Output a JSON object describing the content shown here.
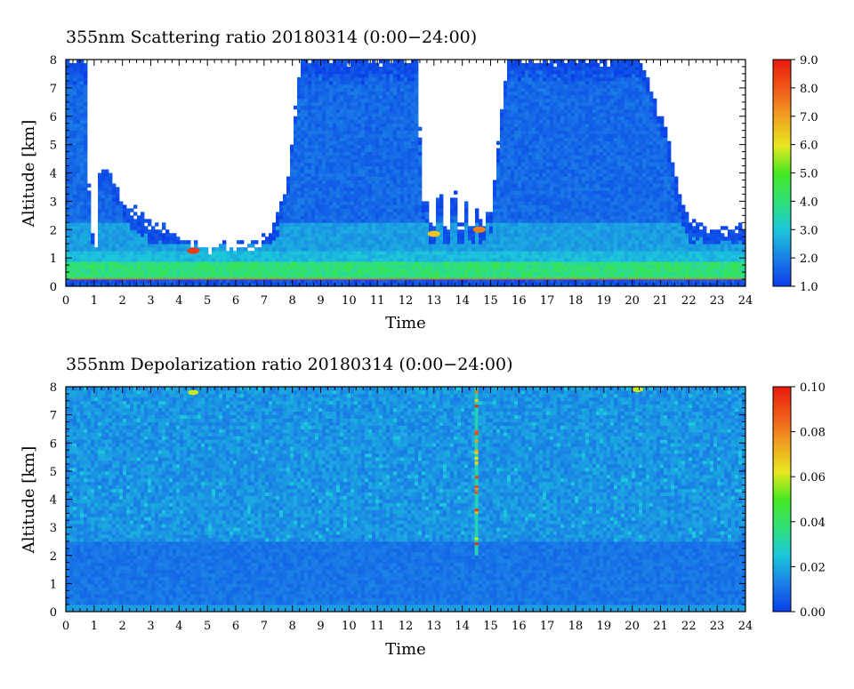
{
  "chart_data": [
    {
      "type": "heatmap",
      "title": "355nm Scattering ratio  20180314 (0:00−24:00)",
      "xlabel": "Time",
      "ylabel": "Altitude [km]",
      "xlim": [
        0,
        24
      ],
      "ylim": [
        0,
        8
      ],
      "x_ticks": [
        "0",
        "1",
        "2",
        "3",
        "4",
        "5",
        "6",
        "7",
        "8",
        "9",
        "10",
        "11",
        "12",
        "13",
        "14",
        "15",
        "16",
        "17",
        "18",
        "19",
        "20",
        "21",
        "22",
        "23",
        "24"
      ],
      "y_ticks": [
        "0",
        "1",
        "2",
        "3",
        "4",
        "5",
        "6",
        "7",
        "8"
      ],
      "colorbar": {
        "range": [
          1.0,
          9.0
        ],
        "ticks": [
          "1.0",
          "2.0",
          "3.0",
          "4.0",
          "5.0",
          "6.0",
          "7.0",
          "8.0",
          "9.0"
        ]
      },
      "colormap": [
        "#0a3ee8",
        "#1a7ce6",
        "#1cc6dc",
        "#2ee07a",
        "#48e822",
        "#e8e820",
        "#f0a020",
        "#f05a18",
        "#e81a10"
      ],
      "cloud_top_profile_km": [
        [
          0,
          8
        ],
        [
          0.7,
          8
        ],
        [
          0.85,
          2.2
        ],
        [
          1.1,
          1.2
        ],
        [
          1.2,
          4.2
        ],
        [
          1.5,
          4.0
        ],
        [
          2.2,
          2.8
        ],
        [
          3.1,
          2.1
        ],
        [
          3.6,
          1.9
        ],
        [
          4.2,
          1.5
        ],
        [
          5.0,
          1.4
        ],
        [
          6.2,
          1.45
        ],
        [
          6.9,
          1.5
        ],
        [
          7.4,
          2.3
        ],
        [
          7.8,
          3.6
        ],
        [
          8.3,
          8
        ],
        [
          12.4,
          8
        ],
        [
          12.6,
          3.0
        ],
        [
          13.3,
          3.2
        ],
        [
          14.2,
          3.0
        ],
        [
          15.0,
          2.6
        ],
        [
          15.6,
          8
        ],
        [
          20.3,
          8
        ],
        [
          21.2,
          5.5
        ],
        [
          21.6,
          3.5
        ],
        [
          22.0,
          2.3
        ],
        [
          23.0,
          2.0
        ],
        [
          24,
          2.0
        ]
      ],
      "clear_sky_spikes_hours": [
        12.9,
        13.4,
        13.9,
        14.3,
        14.7
      ],
      "aerosol_layer_km": [
        0.3,
        0.8
      ],
      "hotspots": [
        {
          "time": 4.5,
          "altitude": 1.25,
          "value": 8.5
        },
        {
          "time": 13.0,
          "altitude": 1.85,
          "value": 6.5
        },
        {
          "time": 14.6,
          "altitude": 2.0,
          "value": 7.5
        }
      ]
    },
    {
      "type": "heatmap",
      "title": "355nm Depolarization ratio  20180314 (0:00−24:00)",
      "xlabel": "Time",
      "ylabel": "Altitude [km]",
      "xlim": [
        0,
        24
      ],
      "ylim": [
        0,
        8
      ],
      "x_ticks": [
        "0",
        "1",
        "2",
        "3",
        "4",
        "5",
        "6",
        "7",
        "8",
        "9",
        "10",
        "11",
        "12",
        "13",
        "14",
        "15",
        "16",
        "17",
        "18",
        "19",
        "20",
        "21",
        "22",
        "23",
        "24"
      ],
      "y_ticks": [
        "0",
        "1",
        "2",
        "3",
        "4",
        "5",
        "6",
        "7",
        "8"
      ],
      "colorbar": {
        "range": [
          0.0,
          0.1
        ],
        "ticks": [
          "0.00",
          "0.02",
          "0.04",
          "0.06",
          "0.08",
          "0.10"
        ]
      },
      "colormap": [
        "#0a3ee8",
        "#1a7ce6",
        "#1cc6dc",
        "#2ee07a",
        "#48e822",
        "#e8e820",
        "#f0a020",
        "#f05a18",
        "#e81a10"
      ],
      "high_depol_column": {
        "time": 14.5,
        "altitude_range_km": [
          2.0,
          8.0
        ],
        "value": 0.09
      },
      "hotspots": [
        {
          "time": 4.5,
          "altitude": 7.8,
          "value": 0.06
        },
        {
          "time": 20.2,
          "altitude": 7.9,
          "value": 0.06
        }
      ]
    }
  ]
}
